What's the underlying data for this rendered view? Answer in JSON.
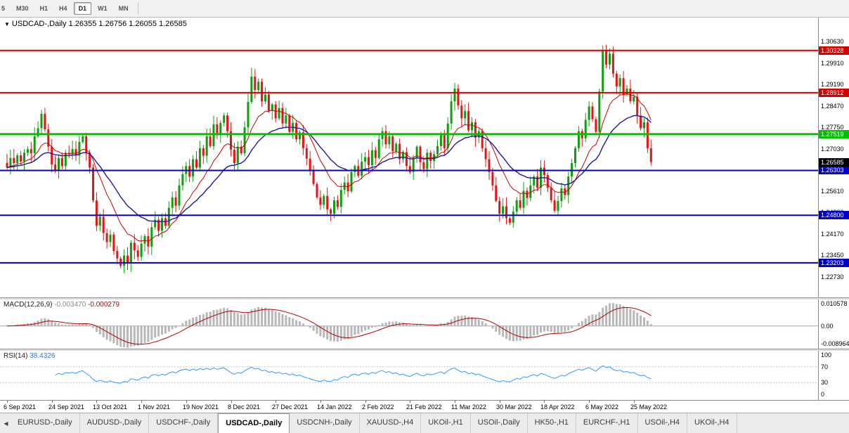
{
  "toolbar": {
    "timeframes": [
      {
        "label": "5",
        "active": false
      },
      {
        "label": "M30",
        "active": false
      },
      {
        "label": "H1",
        "active": false
      },
      {
        "label": "H4",
        "active": false
      },
      {
        "label": "D1",
        "active": true
      },
      {
        "label": "W1",
        "active": false
      },
      {
        "label": "MN",
        "active": false
      }
    ]
  },
  "chart": {
    "dropdown_icon": "▼",
    "symbol": "USDCAD-,Daily",
    "ohlc_text": "1.26355 1.26756 1.26055 1.26585"
  },
  "chart_data": {
    "type": "candlestick",
    "symbol": "USDCAD",
    "period": "Daily",
    "open": 1.26355,
    "high": 1.26756,
    "low": 1.26055,
    "close": 1.26585,
    "y_range": [
      1.22046,
      1.31432
    ],
    "y_ticks": [
      "1.30630",
      "1.29910",
      "1.29190",
      "1.28470",
      "1.27750",
      "1.27030",
      "1.26310",
      "1.25610",
      "1.24890",
      "1.24170",
      "1.23450",
      "1.22730"
    ],
    "x_labels": [
      {
        "label": "6 Sep 2021",
        "bar": 0
      },
      {
        "label": "24 Sep 2021",
        "bar": 13
      },
      {
        "label": "13 Oct 2021",
        "bar": 26
      },
      {
        "label": "1 Nov 2021",
        "bar": 39
      },
      {
        "label": "19 Nov 2021",
        "bar": 52
      },
      {
        "label": "8 Dec 2021",
        "bar": 65
      },
      {
        "label": "27 Dec 2021",
        "bar": 78
      },
      {
        "label": "14 Jan 2022",
        "bar": 91
      },
      {
        "label": "2 Feb 2022",
        "bar": 104
      },
      {
        "label": "21 Feb 2022",
        "bar": 117
      },
      {
        "label": "11 Mar 2022",
        "bar": 130
      },
      {
        "label": "30 Mar 2022",
        "bar": 143
      },
      {
        "label": "18 Apr 2022",
        "bar": 156
      },
      {
        "label": "6 May 2022",
        "bar": 169
      },
      {
        "label": "25 May 2022",
        "bar": 182
      }
    ],
    "closes": [
      1.264,
      1.2672,
      1.2655,
      1.2681,
      1.266,
      1.269,
      1.2702,
      1.2688,
      1.2745,
      1.2772,
      1.282,
      1.2768,
      1.271,
      1.265,
      1.2628,
      1.2672,
      1.2645,
      1.269,
      1.2685,
      1.2702,
      1.268,
      1.2726,
      1.2745,
      1.269,
      1.264,
      1.253,
      1.2445,
      1.2475,
      1.242,
      1.239,
      1.2415,
      1.236,
      1.2335,
      1.231,
      1.2345,
      1.2318,
      1.2388,
      1.2362,
      1.234,
      1.2385,
      1.241,
      1.2375,
      1.244,
      1.2465,
      1.2428,
      1.247,
      1.2445,
      1.2505,
      1.254,
      1.2512,
      1.258,
      1.2618,
      1.2645,
      1.261,
      1.2668,
      1.264,
      1.2705,
      1.268,
      1.2745,
      1.2712,
      1.2785,
      1.2752,
      1.279,
      1.2815,
      1.2762,
      1.27,
      1.2655,
      1.271,
      1.2688,
      1.2775,
      1.286,
      1.2945,
      1.29,
      1.2928,
      1.2862,
      1.2885,
      1.283,
      1.2852,
      1.2805,
      1.284,
      1.2788,
      1.2815,
      1.276,
      1.279,
      1.2735,
      1.2758,
      1.2705,
      1.267,
      1.263,
      1.2585,
      1.254,
      1.2515,
      1.2545,
      1.25,
      1.2485,
      1.253,
      1.2508,
      1.2565,
      1.259,
      1.256,
      1.2625,
      1.2645,
      1.2612,
      1.266,
      1.2675,
      1.2648,
      1.2698,
      1.2672,
      1.2735,
      1.2762,
      1.2718,
      1.2745,
      1.2695,
      1.272,
      1.2668,
      1.2692,
      1.2645,
      1.2625,
      1.2672,
      1.271,
      1.2658,
      1.2635,
      1.269,
      1.2662,
      1.2685,
      1.2712,
      1.2748,
      1.2705,
      1.2788,
      1.2862,
      1.2905,
      1.2848,
      1.2805,
      1.283,
      1.2765,
      1.2792,
      1.274,
      1.2762,
      1.2705,
      1.2668,
      1.2625,
      1.258,
      1.2528,
      1.2485,
      1.251,
      1.247,
      1.2455,
      1.2492,
      1.253,
      1.2505,
      1.2562,
      1.2538,
      1.258,
      1.261,
      1.2572,
      1.264,
      1.2615,
      1.2572,
      1.253,
      1.2495,
      1.2528,
      1.257,
      1.2548,
      1.261,
      1.2655,
      1.2705,
      1.2762,
      1.2738,
      1.28,
      1.2845,
      1.2802,
      1.276,
      1.2895,
      1.3035,
      1.2985,
      1.3022,
      1.2955,
      1.2912,
      1.294,
      1.2885,
      1.2905,
      1.2862,
      1.2878,
      1.2815,
      1.2772,
      1.2792,
      1.2705,
      1.26585
    ],
    "hlines": [
      {
        "price": 1.30328,
        "label": "1.30328",
        "color": "#d40000",
        "width": 2
      },
      {
        "price": 1.28912,
        "label": "1.28912",
        "color": "#d40000",
        "width": 2
      },
      {
        "price": 1.27519,
        "label": "1.27519",
        "color": "#00c000",
        "width": 3
      },
      {
        "price": 1.26303,
        "label": "1.26303",
        "color": "#0000c8",
        "width": 2
      },
      {
        "price": 1.248,
        "label": "1.24800",
        "color": "#0000c8",
        "width": 2
      },
      {
        "price": 1.23203,
        "label": "1.23203",
        "color": "#0000c8",
        "width": 2
      }
    ],
    "price_badge": {
      "price": 1.26585,
      "label": "1.26585",
      "color": "#000000"
    },
    "moving_averages": [
      {
        "period": 12,
        "color": "#cc0000",
        "width": 1
      },
      {
        "period": 26,
        "color": "#1a1aa6",
        "width": 1.4
      }
    ],
    "candle_colors": {
      "bull": "#0ca00c",
      "bear": "#ee1111"
    },
    "indicators": {
      "macd": {
        "label": "MACD(12,26,9)",
        "main": "-0.003470",
        "signal": "-0.000279",
        "fast": 12,
        "slow": 26,
        "smooth": 9,
        "hist_color": "#b8b8b8",
        "signal_color": "#b30000",
        "range": [
          -0.0098,
          0.0115
        ],
        "y_ticks": [
          {
            "label": "0.010578",
            "value": 0.010578
          },
          {
            "label": "0.00",
            "value": 0
          },
          {
            "label": "-0.008964",
            "value": -0.008964
          }
        ]
      },
      "rsi": {
        "label": "RSI(14)",
        "value": "38.4326",
        "period": 14,
        "line_color": "#3399ff",
        "level_lines": [
          70,
          30
        ],
        "levels": [
          {
            "label": "100",
            "value": 100
          },
          {
            "label": "70",
            "value": 70
          },
          {
            "label": "30",
            "value": 30
          },
          {
            "label": "0",
            "value": 0
          }
        ]
      }
    }
  },
  "tabs": {
    "scroll_left_icon": "◀",
    "items": [
      {
        "label": "EURUSD-,Daily",
        "active": false
      },
      {
        "label": "AUDUSD-,Daily",
        "active": false
      },
      {
        "label": "USDCHF-,Daily",
        "active": false
      },
      {
        "label": "USDCAD-,Daily",
        "active": true
      },
      {
        "label": "USDCNH-,Daily",
        "active": false
      },
      {
        "label": "XAUUSD-,H4",
        "active": false
      },
      {
        "label": "UKOil-,H1",
        "active": false
      },
      {
        "label": "USOil-,Daily",
        "active": false
      },
      {
        "label": "HK50-,H1",
        "active": false
      },
      {
        "label": "EURCHF-,H1",
        "active": false
      },
      {
        "label": "USOil-,H4",
        "active": false
      },
      {
        "label": "UKOil-,H4",
        "active": false
      }
    ]
  }
}
